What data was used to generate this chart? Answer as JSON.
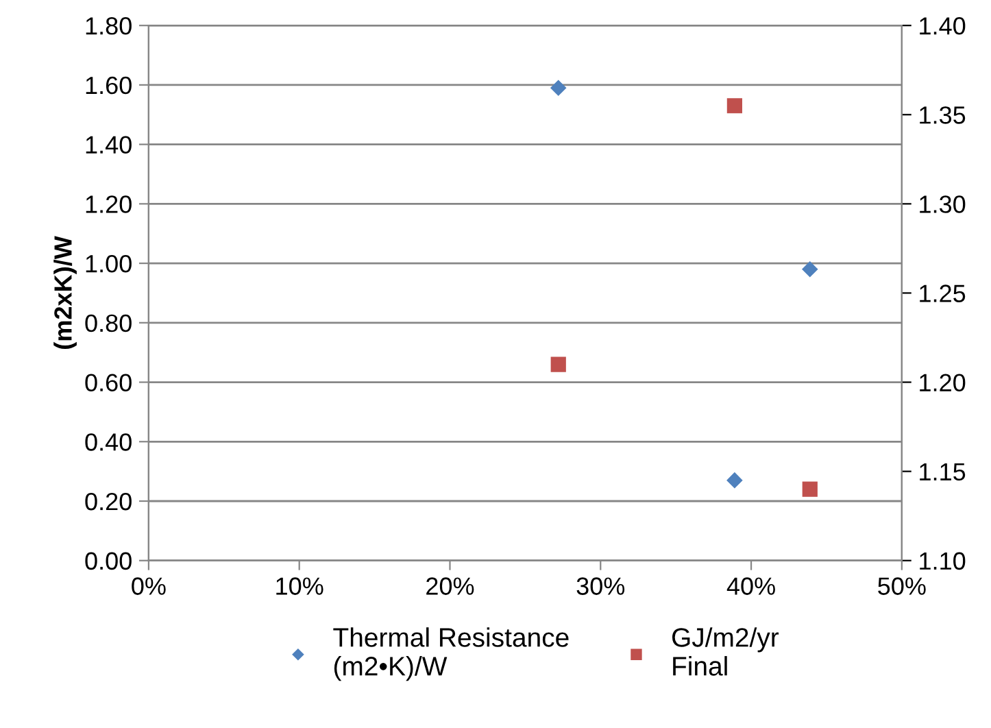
{
  "chart_data": {
    "type": "scatter",
    "ylabel": "(m2xK)/W",
    "x": [
      0.272,
      0.389,
      0.439
    ],
    "series": [
      {
        "name": "Thermal Resistance\n(m2•K)/W",
        "color": "#4f81bd",
        "marker": "diamond",
        "values": [
          1.59,
          0.27,
          0.98
        ]
      },
      {
        "name": "GJ/m2/yr\nFinal",
        "color": "#c0504d",
        "marker": "square",
        "axis": "y2",
        "values": [
          1.21,
          1.355,
          1.14
        ]
      }
    ],
    "xlim": [
      0,
      0.5
    ],
    "xticks": [
      {
        "value": 0,
        "label": "0%"
      },
      {
        "value": 0.1,
        "label": "10%"
      },
      {
        "value": 0.2,
        "label": "20%"
      },
      {
        "value": 0.3,
        "label": "30%"
      },
      {
        "value": 0.4,
        "label": "40%"
      },
      {
        "value": 0.5,
        "label": "50%"
      }
    ],
    "ylim": [
      0,
      1.8
    ],
    "yticks": [
      {
        "value": 0,
        "label": "0.00"
      },
      {
        "value": 0.2,
        "label": "0.20"
      },
      {
        "value": 0.4,
        "label": "0.40"
      },
      {
        "value": 0.6,
        "label": "0.60"
      },
      {
        "value": 0.8,
        "label": "0.80"
      },
      {
        "value": 1.0,
        "label": "1.00"
      },
      {
        "value": 1.2,
        "label": "1.20"
      },
      {
        "value": 1.4,
        "label": "1.40"
      },
      {
        "value": 1.6,
        "label": "1.60"
      },
      {
        "value": 1.8,
        "label": "1.80"
      }
    ],
    "y2lim": [
      1.1,
      1.4
    ],
    "y2ticks": [
      {
        "value": 1.1,
        "label": "1.10"
      },
      {
        "value": 1.15,
        "label": "1.15"
      },
      {
        "value": 1.2,
        "label": "1.20"
      },
      {
        "value": 1.25,
        "label": "1.25"
      },
      {
        "value": 1.3,
        "label": "1.30"
      },
      {
        "value": 1.35,
        "label": "1.35"
      },
      {
        "value": 1.4,
        "label": "1.40"
      }
    ],
    "grid": "y",
    "legend": "bottom"
  }
}
